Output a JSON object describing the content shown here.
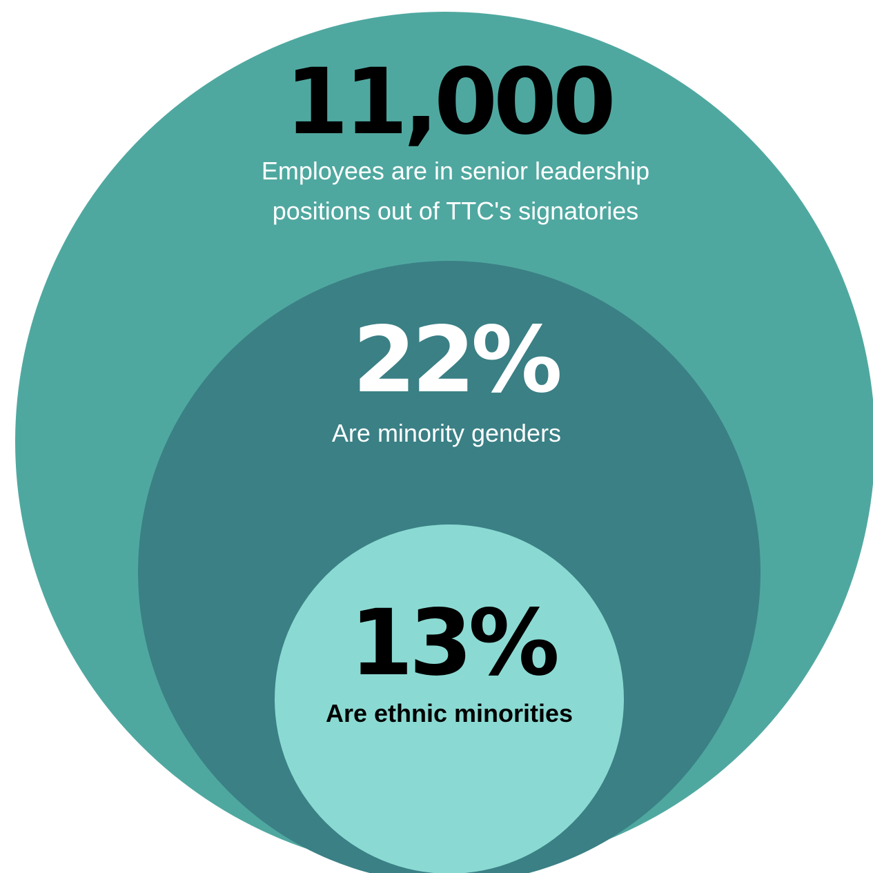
{
  "circles": [
    {
      "figure": "11,000",
      "caption": [
        "Employees are in senior leadership",
        "positions out of TTC's signatories"
      ]
    },
    {
      "figure": "22%",
      "caption": [
        "Are minority genders"
      ]
    },
    {
      "figure": "13%",
      "caption": [
        "Are ethnic minorities"
      ]
    }
  ]
}
